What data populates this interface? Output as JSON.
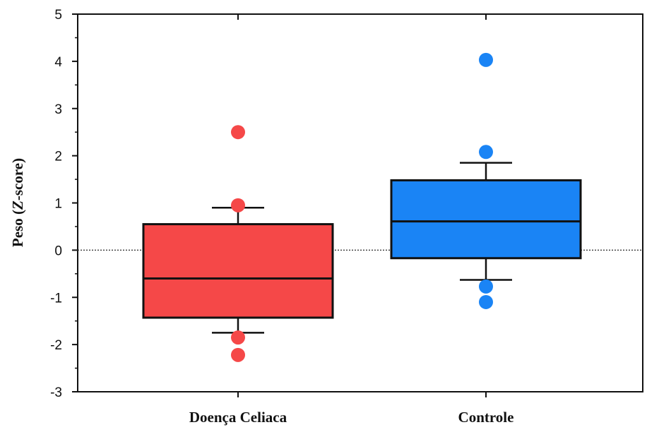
{
  "chart_data": {
    "type": "box",
    "ylabel_parts": [
      "Peso (",
      "Z",
      "-score)"
    ],
    "ylim": [
      -3,
      5
    ],
    "yticks": [
      "-3",
      "-2",
      "-1",
      "0",
      "1",
      "2",
      "3",
      "4",
      "5"
    ],
    "reference_line": 0,
    "grid": false,
    "categories": [
      "Doença Celiaca",
      "Controle"
    ],
    "boxes": [
      {
        "category": "Doença Celiaca",
        "color": "#f54848",
        "whisker_low": -1.75,
        "q1": -1.43,
        "median": -0.6,
        "q3": 0.55,
        "whisker_high": 0.9,
        "outliers": [
          2.5,
          0.95,
          -1.85,
          -2.22
        ]
      },
      {
        "category": "Controle",
        "color": "#1a84f5",
        "whisker_low": -0.63,
        "q1": -0.17,
        "median": 0.61,
        "q3": 1.48,
        "whisker_high": 1.85,
        "outliers": [
          4.03,
          2.08,
          -0.77,
          -1.1
        ]
      }
    ]
  }
}
